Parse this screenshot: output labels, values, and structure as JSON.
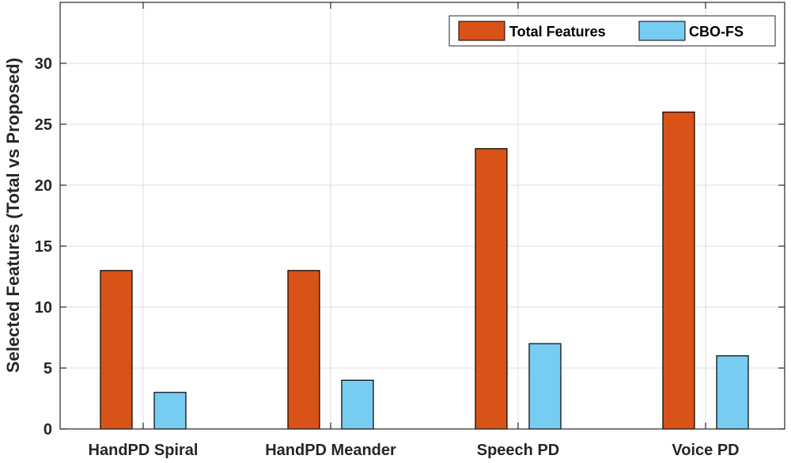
{
  "chart_data": {
    "type": "bar",
    "title": "",
    "xlabel": "",
    "ylabel": "Selected Features (Total vs Proposed)",
    "categories": [
      "HandPD Spiral",
      "HandPD Meander",
      "Speech PD",
      "Voice PD"
    ],
    "series": [
      {
        "name": "Total Features",
        "values": [
          13,
          13,
          23,
          26
        ],
        "color": "#D95319"
      },
      {
        "name": "CBO-FS",
        "values": [
          3,
          4,
          7,
          6
        ],
        "color": "#77CCF2"
      }
    ],
    "ylim": [
      0,
      35
    ],
    "yticks": [
      0,
      5,
      10,
      15,
      20,
      25,
      30
    ],
    "grid": true,
    "legend_position": "top-right"
  }
}
